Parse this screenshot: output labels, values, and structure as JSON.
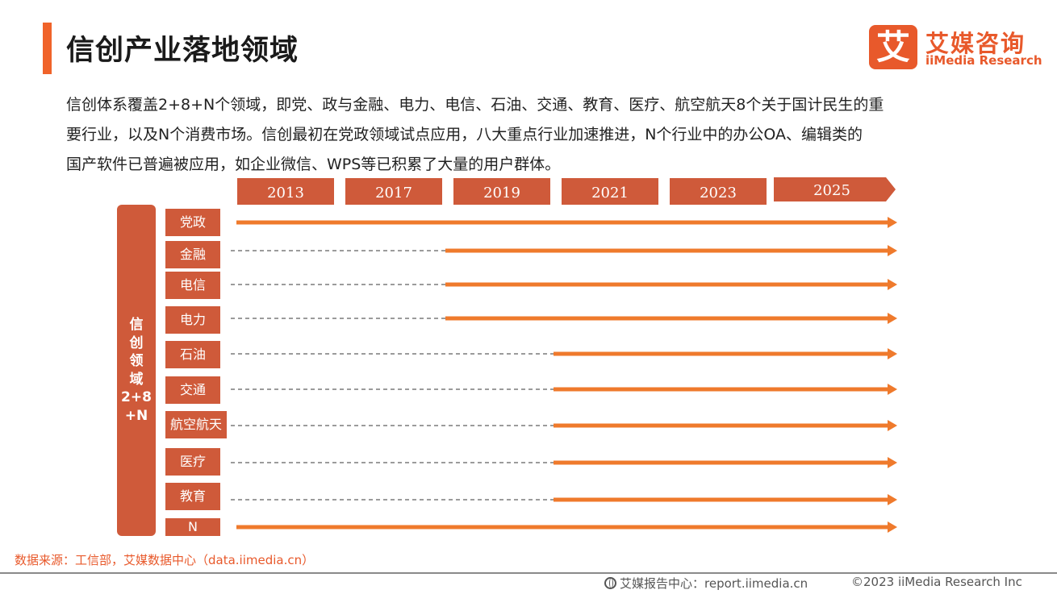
{
  "header": {
    "title": "信创产业落地领域"
  },
  "logo": {
    "mark": "艾",
    "cn": "艾媒咨询",
    "en": "iiMedia Research"
  },
  "intro": [
    "信创体系覆盖2+8+N个领域，即党、政与金融、电力、电信、石油、交通、教育、医疗、航空航天8个关于国计民生的重",
    "要行业，以及N个消费市场。信创最初在党政领域试点应用，八大重点行业加速推进，N个行业中的办公OA、编辑类的",
    "国产软件已普遍被应用，如企业微信、WPS等已积累了大量的用户群体。"
  ],
  "timeline": {
    "years": [
      "2013",
      "2017",
      "2019",
      "2021",
      "2023",
      "2025"
    ],
    "group_label": [
      "信",
      "创",
      "领",
      "域",
      "2+8",
      "+N"
    ],
    "categories": [
      {
        "name": "党政",
        "start": "2013"
      },
      {
        "name": "金融",
        "start": "2019"
      },
      {
        "name": "电信",
        "start": "2019"
      },
      {
        "name": "电力",
        "start": "2019"
      },
      {
        "name": "石油",
        "start": "2021"
      },
      {
        "name": "交通",
        "start": "2021"
      },
      {
        "name": "航空航天",
        "start": "2021"
      },
      {
        "name": "医疗",
        "start": "2021"
      },
      {
        "name": "教育",
        "start": "2021"
      },
      {
        "name": "N",
        "start": "2013"
      }
    ],
    "colors": {
      "box": "#cf5a3a",
      "arrow": "#ef7a2c",
      "dash": "#7a7a7a"
    }
  },
  "footnote": "数据来源：工信部，艾媒数据中心（data.iimedia.cn）",
  "footer": {
    "left": "艾媒报告中心：report.iimedia.cn",
    "right": "©2023  iiMedia Research  Inc"
  }
}
